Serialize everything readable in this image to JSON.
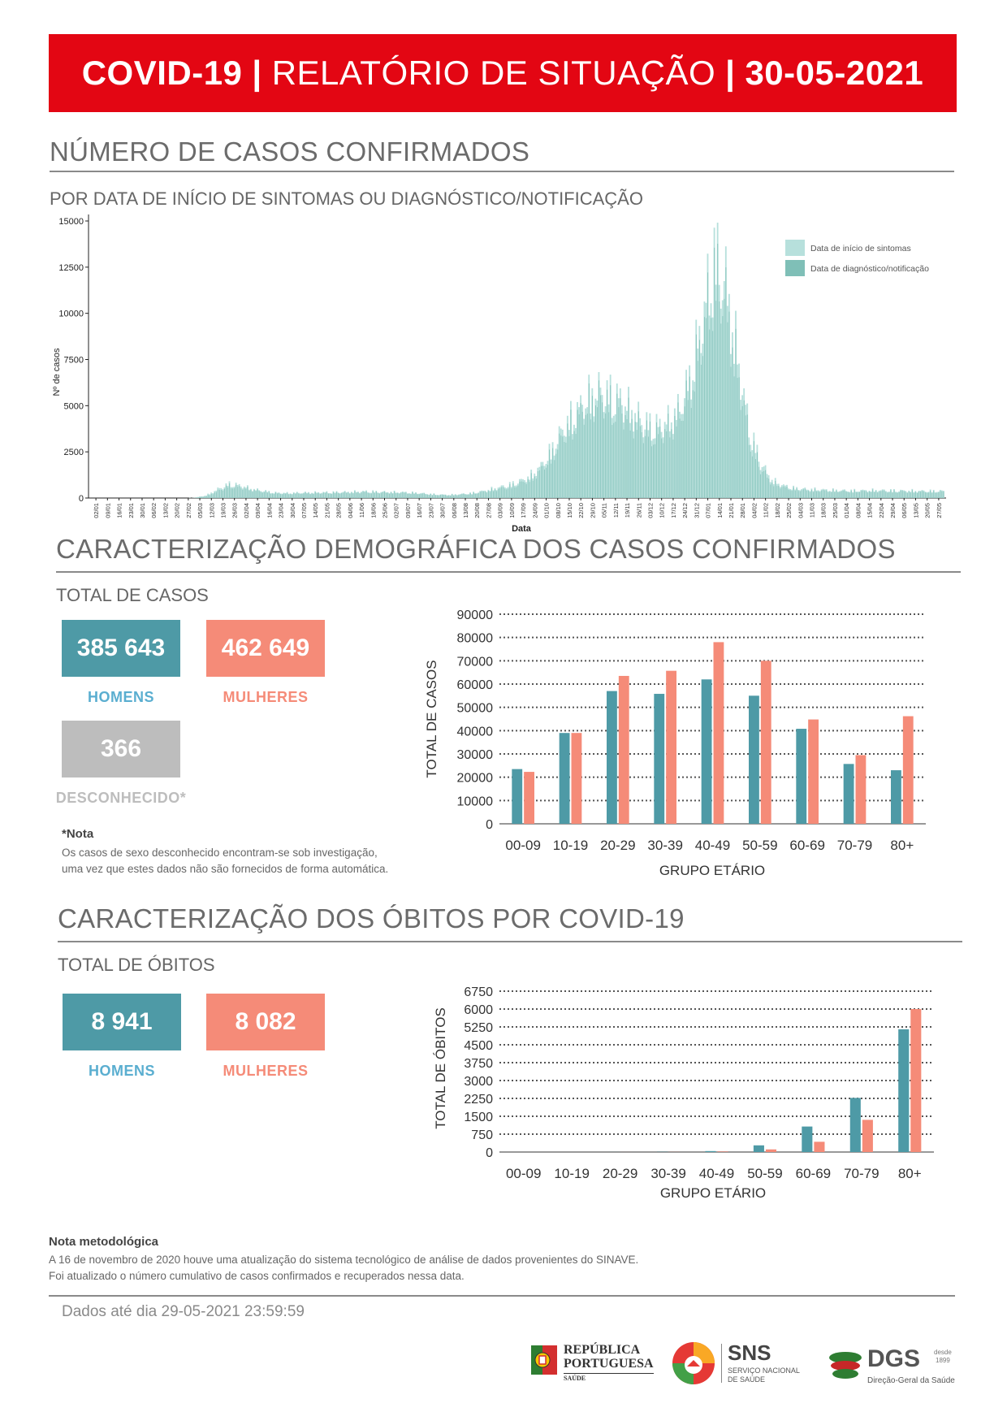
{
  "header": {
    "title_a": "COVID-19",
    "sep1": "|",
    "title_b": "RELATÓRIO DE SITUAÇÃO",
    "sep2": "|",
    "date": "30-05-2021"
  },
  "section1": {
    "title": "NÚMERO DE CASOS CONFIRMADOS",
    "subtitle": "POR DATA DE INÍCIO DE SINTOMAS OU DIAGNÓSTICO/NOTIFICAÇÃO"
  },
  "section2": {
    "title": "CARACTERIZAÇÃO DEMOGRÁFICA DOS CASOS CONFIRMADOS",
    "subtitle": "TOTAL DE CASOS",
    "men_value": "385 643",
    "men_label": "HOMENS",
    "women_value": "462 649",
    "women_label": "MULHERES",
    "unknown_value": "366",
    "unknown_label": "DESCONHECIDO*",
    "note_title": "*Nota",
    "note_line1": "Os casos de sexo desconhecido encontram-se sob investigação,",
    "note_line2": "uma vez que estes dados não são fornecidos de forma automática."
  },
  "section3": {
    "title": "CARACTERIZAÇÃO DOS ÓBITOS POR COVID-19",
    "subtitle": "TOTAL DE ÓBITOS",
    "men_value": "8 941",
    "men_label": "HOMENS",
    "women_value": "8 082",
    "women_label": "MULHERES"
  },
  "methodology": {
    "title": "Nota metodológica",
    "line1": "A 16 de novembro de 2020 houve uma atualização do sistema tecnológico de análise de dados provenientes do SINAVE.",
    "line2": "Foi atualizado o número cumulativo de casos confirmados e recuperados nessa data."
  },
  "footer": {
    "data_until": "Dados até dia 29-05-2021 23:59:59",
    "logo1_line1": "REPÚBLICA",
    "logo1_line2": "PORTUGUESA",
    "logo1_line3": "SAÚDE",
    "logo2_main": "SNS",
    "logo2_line1": "SERVIÇO NACIONAL",
    "logo2_line2": "DE SAÚDE",
    "logo3_main": "DGS",
    "logo3_since": "desde",
    "logo3_year": "1899",
    "logo3_sub": "Direção-Geral da Saúde"
  },
  "colors": {
    "red": "#e30613",
    "teal": "#4e9aa6",
    "salmon": "#f58b78",
    "grey": "#bdbdbd",
    "light_teal": "#b7e0dc",
    "mid_teal": "#7fbfb7"
  },
  "chart_data": [
    {
      "type": "bar",
      "ylabel": "Nº de casos",
      "xlabel": "Data",
      "ylim": [
        0,
        15000
      ],
      "yticks": [
        "0",
        "2500",
        "5000",
        "7500",
        "10000",
        "12500",
        "15000"
      ],
      "legend_position": "top-right",
      "series": [
        {
          "name": "Data de início de sintomas",
          "color": "#b7e0dc"
        },
        {
          "name": "Data de diagnóstico/notificação",
          "color": "#7fbfb7"
        }
      ],
      "x_tick_labels": [
        "02/01",
        "09/01",
        "16/01",
        "23/01",
        "30/01",
        "06/02",
        "13/02",
        "20/02",
        "27/02",
        "05/03",
        "12/03",
        "19/03",
        "26/03",
        "02/04",
        "09/04",
        "16/04",
        "23/04",
        "30/04",
        "07/05",
        "14/05",
        "21/05",
        "28/05",
        "04/06",
        "11/06",
        "18/06",
        "25/06",
        "02/07",
        "09/07",
        "16/07",
        "23/07",
        "30/07",
        "06/08",
        "13/08",
        "20/08",
        "27/08",
        "03/09",
        "10/09",
        "17/09",
        "24/09",
        "01/10",
        "08/10",
        "15/10",
        "22/10",
        "29/10",
        "05/11",
        "12/11",
        "19/11",
        "26/11",
        "03/12",
        "10/12",
        "17/12",
        "24/12",
        "31/12",
        "07/01",
        "14/01",
        "21/01",
        "28/01",
        "04/02",
        "11/02",
        "18/02",
        "25/02",
        "04/03",
        "11/03",
        "18/03",
        "25/03",
        "01/04",
        "08/04",
        "15/04",
        "22/04",
        "29/04",
        "06/05",
        "13/05",
        "20/05",
        "27/05"
      ],
      "weekly_symptoms": [
        0,
        0,
        0,
        0,
        0,
        0,
        0,
        0,
        0,
        20,
        150,
        500,
        800,
        700,
        500,
        400,
        300,
        280,
        300,
        310,
        320,
        330,
        340,
        360,
        380,
        350,
        340,
        330,
        300,
        250,
        200,
        180,
        220,
        280,
        400,
        550,
        700,
        900,
        1200,
        1800,
        2800,
        4000,
        4800,
        5600,
        6000,
        5800,
        5500,
        4800,
        4200,
        4000,
        4300,
        5000,
        7000,
        10000,
        13500,
        12000,
        8000,
        4000,
        2000,
        1000,
        700,
        550,
        500,
        480,
        450,
        430,
        420,
        430,
        440,
        430,
        420,
        410,
        400,
        400
      ],
      "weekly_diagnosis": [
        0,
        0,
        0,
        0,
        0,
        0,
        0,
        0,
        0,
        10,
        100,
        400,
        700,
        600,
        450,
        350,
        260,
        240,
        260,
        270,
        280,
        290,
        300,
        320,
        330,
        310,
        300,
        290,
        260,
        220,
        180,
        160,
        190,
        240,
        350,
        480,
        600,
        780,
        1050,
        1600,
        2500,
        3600,
        4400,
        5200,
        5600,
        5300,
        5000,
        4300,
        3800,
        3600,
        3900,
        4600,
        6400,
        9200,
        12500,
        11000,
        7200,
        3500,
        1700,
        850,
        600,
        480,
        440,
        420,
        400,
        380,
        370,
        380,
        390,
        380,
        370,
        360,
        350,
        350
      ]
    },
    {
      "type": "bar",
      "ylabel": "TOTAL DE CASOS",
      "xlabel": "GRUPO ETÁRIO",
      "ylim": [
        0,
        90000
      ],
      "yticks": [
        "0",
        "10000",
        "20000",
        "30000",
        "40000",
        "50000",
        "60000",
        "70000",
        "80000",
        "90000"
      ],
      "categories": [
        "00-09",
        "10-19",
        "20-29",
        "30-39",
        "40-49",
        "50-59",
        "60-69",
        "70-79",
        "80+"
      ],
      "series": [
        {
          "color": "#4e9aa6",
          "values": [
            23500,
            39000,
            57000,
            55800,
            62000,
            55000,
            40800,
            25700,
            23000
          ]
        },
        {
          "color": "#f58b78",
          "values": [
            22300,
            39000,
            63500,
            65700,
            78000,
            70000,
            44800,
            29500,
            46200
          ]
        }
      ]
    },
    {
      "type": "bar",
      "ylabel": "TOTAL DE ÓBITOS",
      "xlabel": "GRUPO ETÁRIO",
      "ylim": [
        0,
        6750
      ],
      "yticks": [
        "0",
        "750",
        "1500",
        "2250",
        "3000",
        "3750",
        "4500",
        "5250",
        "6000",
        "6750"
      ],
      "categories": [
        "00-09",
        "10-19",
        "20-29",
        "30-39",
        "40-49",
        "50-59",
        "60-69",
        "70-79",
        "80+"
      ],
      "series": [
        {
          "color": "#4e9aa6",
          "values": [
            0,
            0,
            2,
            8,
            40,
            280,
            1070,
            2270,
            5150
          ]
        },
        {
          "color": "#f58b78",
          "values": [
            0,
            0,
            1,
            4,
            20,
            110,
            430,
            1350,
            6000
          ]
        }
      ]
    }
  ]
}
